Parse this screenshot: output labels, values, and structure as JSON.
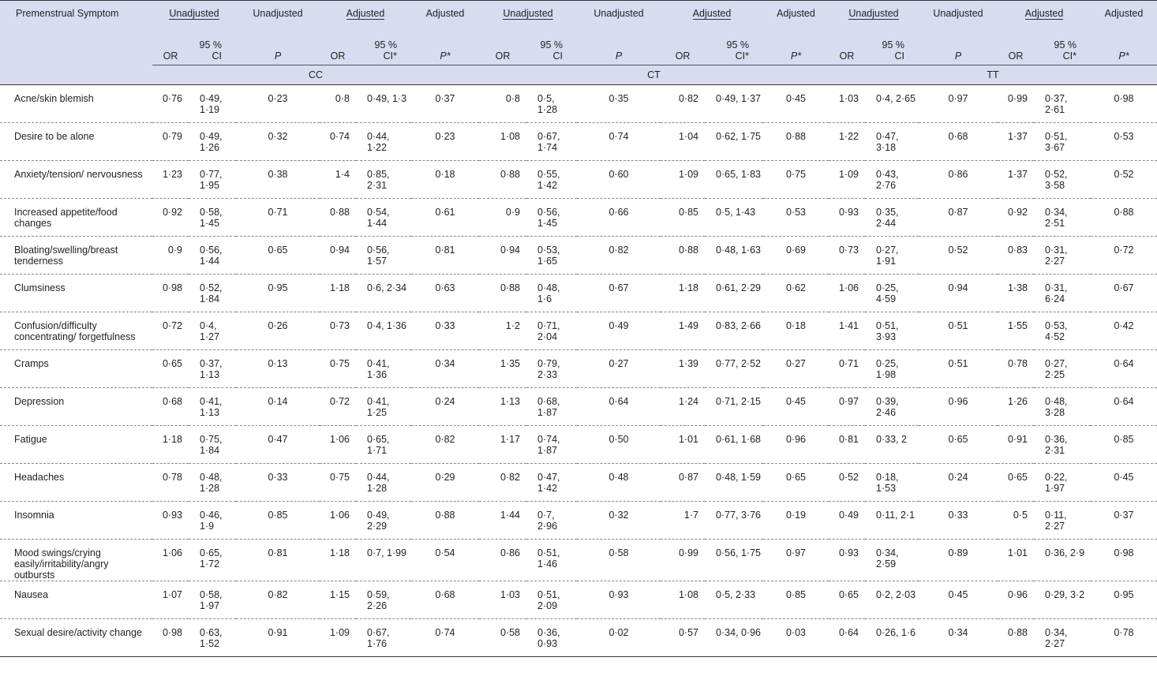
{
  "header": {
    "first_col": "Premenstrual Symptom",
    "unadjusted": "Unadjusted",
    "adjusted": "Adjusted",
    "or": "OR",
    "ci": "95 % CI",
    "ci_adj": "95 % CI*",
    "p": "P",
    "p_adj": "P*",
    "ci_line1": "95 %",
    "ci_line2": "CI",
    "ci_adj_line2": "CI*"
  },
  "genotypes": [
    "CC",
    "CT",
    "TT"
  ],
  "rows": [
    {
      "symptom": "Acne/skin blemish",
      "values": [
        "0·76",
        "0·49, 1·19",
        "0·23",
        "0·8",
        "0·49, 1·3",
        "0·37",
        "0·8",
        "0·5, 1·28",
        "0·35",
        "0·82",
        "0·49, 1·37",
        "0·45",
        "1·03",
        "0·4, 2·65",
        "0·97",
        "0·99",
        "0·37, 2·61",
        "0·98"
      ]
    },
    {
      "symptom": "Desire to be alone",
      "values": [
        "0·79",
        "0·49, 1·26",
        "0·32",
        "0·74",
        "0·44, 1·22",
        "0·23",
        "1·08",
        "0·67, 1·74",
        "0·74",
        "1·04",
        "0·62, 1·75",
        "0·88",
        "1·22",
        "0·47, 3·18",
        "0·68",
        "1·37",
        "0·51, 3·67",
        "0·53"
      ]
    },
    {
      "symptom": "Anxiety/tension/ nervousness",
      "values": [
        "1·23",
        "0·77, 1·95",
        "0·38",
        "1·4",
        "0·85, 2·31",
        "0·18",
        "0·88",
        "0·55, 1·42",
        "0·60",
        "1·09",
        "0·65, 1·83",
        "0·75",
        "1·09",
        "0·43, 2·76",
        "0·86",
        "1·37",
        "0·52, 3·58",
        "0·52"
      ]
    },
    {
      "symptom": "Increased appetite/food changes",
      "values": [
        "0·92",
        "0·58, 1·45",
        "0·71",
        "0·88",
        "0·54, 1·44",
        "0·61",
        "0·9",
        "0·56, 1·45",
        "0·66",
        "0·85",
        "0·5, 1·43",
        "0·53",
        "0·93",
        "0·35, 2·44",
        "0·87",
        "0·92",
        "0·34, 2·51",
        "0·88"
      ]
    },
    {
      "symptom": "Bloating/swelling/breast tenderness",
      "values": [
        "0·9",
        "0·56, 1·44",
        "0·65",
        "0·94",
        "0·56, 1·57",
        "0·81",
        "0·94",
        "0·53, 1·65",
        "0·82",
        "0·88",
        "0·48, 1·63",
        "0·69",
        "0·73",
        "0·27, 1·91",
        "0·52",
        "0·83",
        "0·31, 2·27",
        "0·72"
      ]
    },
    {
      "symptom": "Clumsiness",
      "values": [
        "0·98",
        "0·52, 1·84",
        "0·95",
        "1·18",
        "0·6, 2·34",
        "0·63",
        "0·88",
        "0·48, 1·6",
        "0·67",
        "1·18",
        "0·61, 2·29",
        "0·62",
        "1·06",
        "0·25, 4·59",
        "0·94",
        "1·38",
        "0·31, 6·24",
        "0·67"
      ]
    },
    {
      "symptom": "Confusion/difficulty concentrating/ forgetfulness",
      "values": [
        "0·72",
        "0·4, 1·27",
        "0·26",
        "0·73",
        "0·4, 1·36",
        "0·33",
        "1·2",
        "0·71, 2·04",
        "0·49",
        "1·49",
        "0·83, 2·66",
        "0·18",
        "1·41",
        "0·51, 3·93",
        "0·51",
        "1·55",
        "0·53, 4·52",
        "0·42"
      ]
    },
    {
      "symptom": "Cramps",
      "values": [
        "0·65",
        "0·37, 1·13",
        "0·13",
        "0·75",
        "0·41, 1·36",
        "0·34",
        "1·35",
        "0·79, 2·33",
        "0·27",
        "1·39",
        "0·77, 2·52",
        "0·27",
        "0·71",
        "0·25, 1·98",
        "0·51",
        "0·78",
        "0·27, 2·25",
        "0·64"
      ]
    },
    {
      "symptom": "Depression",
      "values": [
        "0·68",
        "0·41, 1·13",
        "0·14",
        "0·72",
        "0·41, 1·25",
        "0·24",
        "1·13",
        "0·68, 1·87",
        "0·64",
        "1·24",
        "0·71, 2·15",
        "0·45",
        "0·97",
        "0·39, 2·46",
        "0·96",
        "1·26",
        "0·48, 3·28",
        "0·64"
      ]
    },
    {
      "symptom": "Fatigue",
      "values": [
        "1·18",
        "0·75, 1·84",
        "0·47",
        "1·06",
        "0·65, 1·71",
        "0·82",
        "1·17",
        "0·74, 1·87",
        "0·50",
        "1·01",
        "0·61, 1·68",
        "0·96",
        "0·81",
        "0·33, 2",
        "0·65",
        "0·91",
        "0·36, 2·31",
        "0·85"
      ]
    },
    {
      "symptom": "Headaches",
      "values": [
        "0·78",
        "0·48, 1·28",
        "0·33",
        "0·75",
        "0·44, 1·28",
        "0·29",
        "0·82",
        "0·47, 1·42",
        "0·48",
        "0·87",
        "0·48, 1·59",
        "0·65",
        "0·52",
        "0·18, 1·53",
        "0·24",
        "0·65",
        "0·22, 1·97",
        "0·45"
      ]
    },
    {
      "symptom": "Insomnia",
      "values": [
        "0·93",
        "0·46, 1·9",
        "0·85",
        "1·06",
        "0·49, 2·29",
        "0·88",
        "1·44",
        "0·7, 2·96",
        "0·32",
        "1·7",
        "0·77, 3·76",
        "0·19",
        "0·49",
        "0·11, 2·1",
        "0·33",
        "0·5",
        "0·11, 2·27",
        "0·37"
      ]
    },
    {
      "symptom": "Mood swings/crying easily/irritability/angry outbursts",
      "values": [
        "1·06",
        "0·65, 1·72",
        "0·81",
        "1·18",
        "0·7, 1·99",
        "0·54",
        "0·86",
        "0·51, 1·46",
        "0·58",
        "0·99",
        "0·56, 1·75",
        "0·97",
        "0·93",
        "0·34, 2·59",
        "0·89",
        "1·01",
        "0·36, 2·9",
        "0·98"
      ]
    },
    {
      "symptom": "Nausea",
      "values": [
        "1·07",
        "0·58, 1·97",
        "0·82",
        "1·15",
        "0·59, 2·26",
        "0·68",
        "1·03",
        "0·51, 2·09",
        "0·93",
        "1·08",
        "0·5, 2·33",
        "0·85",
        "0·65",
        "0·2, 2·03",
        "0·45",
        "0·96",
        "0·29, 3·2",
        "0·95"
      ]
    },
    {
      "symptom": "Sexual desire/activity change",
      "values": [
        "0·98",
        "0·63, 1·52",
        "0·91",
        "1·09",
        "0·67, 1·76",
        "0·74",
        "0·58",
        "0·36, 0·93",
        "0·02",
        "0·57",
        "0·34, 0·96",
        "0·03",
        "0·64",
        "0·26, 1·6",
        "0·34",
        "0·88",
        "0·34, 2·27",
        "0·78"
      ]
    }
  ]
}
